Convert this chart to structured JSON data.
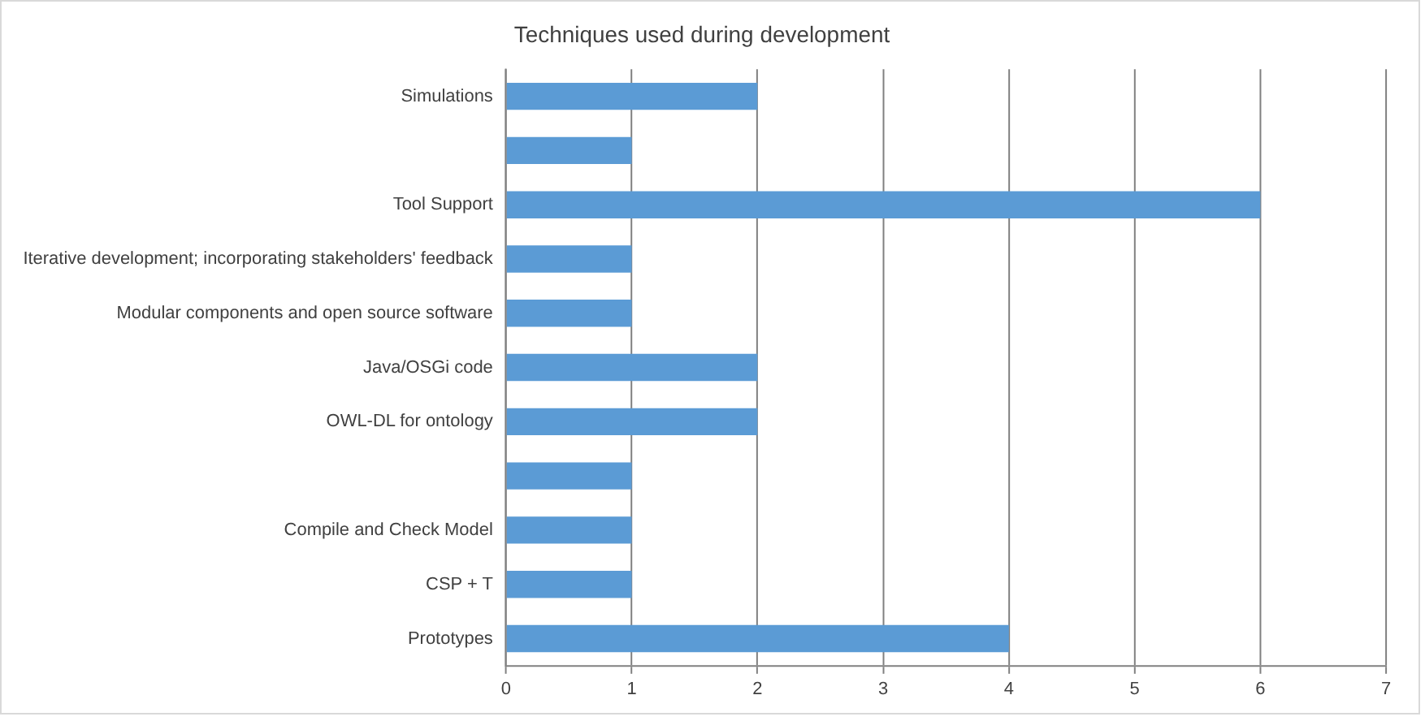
{
  "chart_data": {
    "type": "bar",
    "orientation": "horizontal",
    "title": "Techniques used during development",
    "categories": [
      "Simulations",
      null,
      "Tool Support",
      "Iterative development; incorporating stakeholders' feedback",
      "Modular components and open source software",
      "Java/OSGi code",
      "OWL-DL for ontology",
      null,
      "Compile and Check Model",
      "CSP + T",
      "Prototypes"
    ],
    "values": [
      2,
      1,
      6,
      1,
      1,
      2,
      2,
      1,
      1,
      1,
      4
    ],
    "color": "#5b9bd5",
    "xlim": [
      0,
      7
    ],
    "xticks": [
      0,
      1,
      2,
      3,
      4,
      5,
      6,
      7
    ],
    "grid": "x",
    "legend": false
  }
}
